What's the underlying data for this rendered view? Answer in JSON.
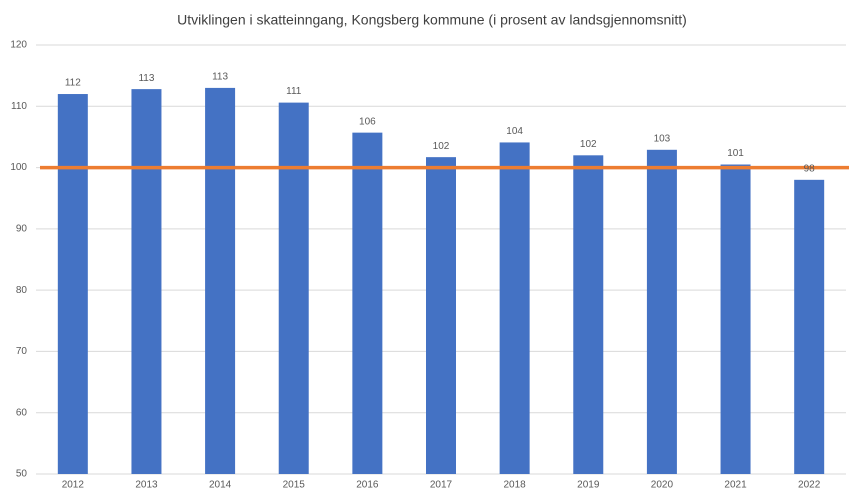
{
  "chart_data": {
    "type": "bar",
    "title": "Utviklingen i skatteinngang, Kongsberg kommune (i prosent av landsgjennomsnitt)",
    "categories": [
      "2012",
      "2013",
      "2014",
      "2015",
      "2016",
      "2017",
      "2018",
      "2019",
      "2020",
      "2021",
      "2022"
    ],
    "values": [
      112,
      112.8,
      113,
      110.6,
      105.7,
      101.7,
      104.1,
      102,
      102.9,
      100.5,
      98
    ],
    "value_labels": [
      "112",
      "113",
      "113",
      "111",
      "106",
      "102",
      "104",
      "102",
      "103",
      "101",
      "98"
    ],
    "color": "#4472c4",
    "reference_line": {
      "value": 100,
      "color": "#ed7d31"
    },
    "ylim": [
      50,
      120
    ],
    "yticks": [
      50,
      60,
      70,
      80,
      90,
      100,
      110,
      120
    ],
    "grid": true
  }
}
